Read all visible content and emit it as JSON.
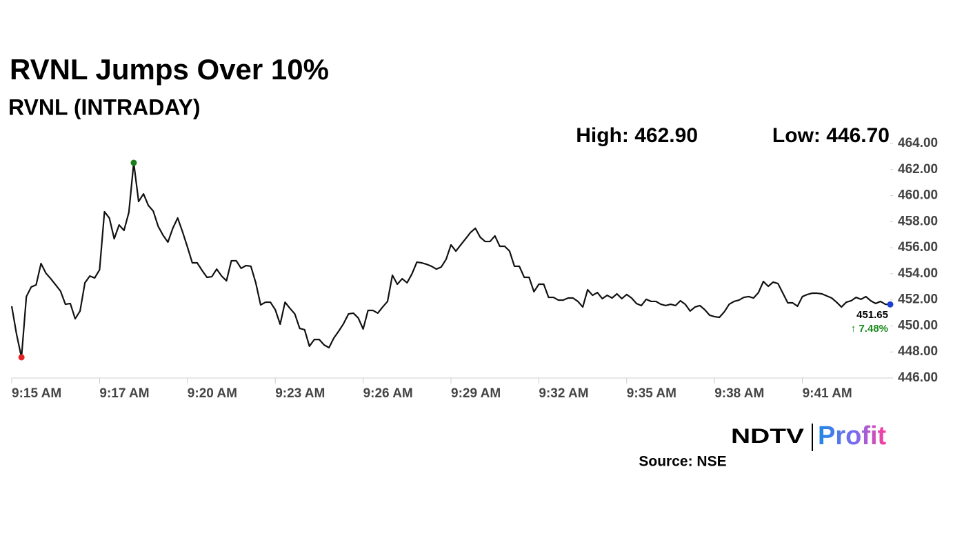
{
  "chart_data": {
    "type": "line",
    "title": "RVNL Jumps Over 10%",
    "subtitle": "RVNL (INTRADAY)",
    "high_text": "High: 462.90",
    "low_text": "Low: 446.70",
    "last_label": "451.65",
    "change_label": "↑ 7.48%",
    "source": "Source: NSE",
    "logo": {
      "left": "NDTV",
      "right": "Profit"
    },
    "color": "#111111",
    "high_color": "#1a7f1a",
    "low_color": "#e52222",
    "last_color": "#1a3fd6",
    "change_color": "#1a8a1a",
    "xlim": [
      0,
      180
    ],
    "ylim": [
      446,
      464
    ],
    "xticks": [
      {
        "value": 0,
        "label": "9:15 AM"
      },
      {
        "value": 18,
        "label": "9:17 AM"
      },
      {
        "value": 36,
        "label": "9:20 AM"
      },
      {
        "value": 54,
        "label": "9:23 AM"
      },
      {
        "value": 72,
        "label": "9:26 AM"
      },
      {
        "value": 90,
        "label": "9:29 AM"
      },
      {
        "value": 108,
        "label": "9:32 AM"
      },
      {
        "value": 126,
        "label": "9:35 AM"
      },
      {
        "value": 144,
        "label": "9:38 AM"
      },
      {
        "value": 162,
        "label": "9:41 AM"
      }
    ],
    "yticks": [
      {
        "value": 446,
        "label": "446.00"
      },
      {
        "value": 448,
        "label": "448.00"
      },
      {
        "value": 450,
        "label": "450.00"
      },
      {
        "value": 452,
        "label": "452.00"
      },
      {
        "value": 454,
        "label": "454.00"
      },
      {
        "value": 456,
        "label": "456.00"
      },
      {
        "value": 458,
        "label": "458.00"
      },
      {
        "value": 460,
        "label": "460.00"
      },
      {
        "value": 462,
        "label": "462.00"
      },
      {
        "value": 464,
        "label": "464.00"
      }
    ],
    "x": [
      0,
      1,
      2,
      3,
      4,
      5,
      6,
      7,
      8,
      9,
      10,
      11,
      12,
      13,
      14,
      15,
      16,
      17,
      18,
      19,
      20,
      21,
      22,
      23,
      24,
      25,
      26,
      27,
      28,
      29,
      30,
      31,
      32,
      33,
      34,
      35,
      36,
      37,
      38,
      39,
      40,
      41,
      42,
      43,
      44,
      45,
      46,
      47,
      48,
      49,
      50,
      51,
      52,
      53,
      54,
      55,
      56,
      57,
      58,
      59,
      60,
      61,
      62,
      63,
      64,
      65,
      66,
      67,
      68,
      69,
      70,
      71,
      72,
      73,
      74,
      75,
      76,
      77,
      78,
      79,
      80,
      81,
      82,
      83,
      84,
      85,
      86,
      87,
      88,
      89,
      90,
      91,
      92,
      93,
      94,
      95,
      96,
      97,
      98,
      99,
      100,
      101,
      102,
      103,
      104,
      105,
      106,
      107,
      108,
      109,
      110,
      111,
      112,
      113,
      114,
      115,
      116,
      117,
      118,
      119,
      120,
      121,
      122,
      123,
      124,
      125,
      126,
      127,
      128,
      129,
      130,
      131,
      132,
      133,
      134,
      135,
      136,
      137,
      138,
      139,
      140,
      141,
      142,
      143,
      144,
      145,
      146,
      147,
      148,
      149,
      150,
      151,
      152,
      153,
      154,
      155,
      156,
      157,
      158,
      159,
      160,
      161,
      162,
      163,
      164,
      165,
      166,
      167,
      168,
      169,
      170,
      171,
      172,
      173,
      174,
      175,
      176,
      177,
      178,
      179,
      180
    ],
    "values": [
      451.51,
      449.34,
      447.59,
      452.25,
      452.99,
      453.15,
      454.79,
      454.05,
      453.62,
      453.15,
      452.67,
      451.66,
      451.72,
      450.55,
      451.14,
      453.31,
      453.83,
      453.68,
      454.31,
      458.76,
      458.28,
      456.69,
      457.75,
      457.33,
      458.71,
      462.52,
      459.55,
      460.13,
      459.24,
      458.81,
      457.65,
      456.96,
      456.43,
      457.49,
      458.28,
      457.22,
      456.06,
      454.84,
      454.84,
      454.26,
      453.73,
      453.78,
      454.36,
      453.83,
      453.46,
      455.0,
      455.0,
      454.42,
      454.63,
      454.58,
      453.31,
      451.61,
      451.82,
      451.82,
      451.24,
      450.13,
      451.82,
      451.35,
      450.92,
      449.81,
      449.71,
      448.44,
      448.96,
      448.96,
      448.54,
      448.33,
      449.07,
      449.6,
      450.18,
      450.92,
      450.98,
      450.61,
      449.76,
      451.19,
      451.19,
      450.98,
      451.45,
      451.88,
      453.89,
      453.2,
      453.62,
      453.31,
      453.99,
      454.89,
      454.84,
      454.73,
      454.58,
      454.36,
      454.52,
      455.11,
      456.22,
      455.74,
      456.22,
      456.69,
      457.17,
      457.49,
      456.8,
      456.48,
      456.48,
      456.91,
      456.11,
      456.11,
      455.74,
      454.58,
      454.58,
      453.73,
      453.73,
      452.62,
      453.2,
      453.2,
      452.19,
      452.19,
      451.98,
      451.98,
      452.14,
      452.14,
      451.88,
      451.45,
      452.78,
      452.35,
      452.56,
      452.09,
      452.35,
      452.14,
      452.46,
      452.09,
      452.41,
      452.14,
      451.72,
      451.56,
      452.04,
      451.88,
      451.88,
      451.66,
      451.56,
      451.66,
      451.56,
      451.93,
      451.66,
      451.14,
      451.45,
      451.56,
      451.24,
      450.82,
      450.71,
      450.66,
      451.08,
      451.66,
      451.88,
      451.98,
      452.19,
      452.25,
      452.14,
      452.56,
      453.41,
      453.04,
      453.36,
      453.25,
      452.51,
      451.77,
      451.77,
      451.51,
      452.25,
      452.41,
      452.51,
      452.51,
      452.46,
      452.3,
      452.14,
      451.82,
      451.45,
      451.82,
      451.93,
      452.19,
      452.04,
      452.25,
      451.93,
      451.72,
      451.88,
      451.66,
      451.65
    ]
  }
}
